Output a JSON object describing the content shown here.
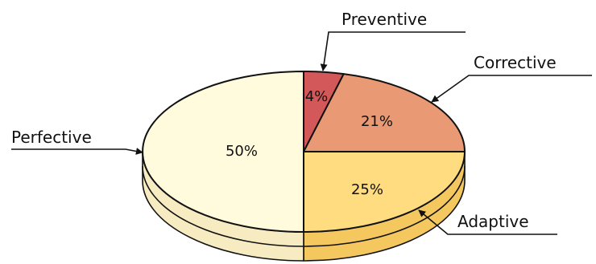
{
  "chart_data": {
    "type": "pie",
    "title": "",
    "categories": [
      "Preventive",
      "Corrective",
      "Adaptive",
      "Perfective"
    ],
    "values": [
      4,
      21,
      25,
      50
    ],
    "value_labels": [
      "4%",
      "21%",
      "25%",
      "50%"
    ],
    "unit": "%",
    "legend": "none",
    "three_d": true,
    "colors": [
      "#d2585a",
      "#e99a74",
      "#ffdc80",
      "#fffbdc"
    ],
    "side_colors": [
      "#a94446",
      "#c57e5e",
      "#f5c85f",
      "#f7ebc2"
    ]
  }
}
